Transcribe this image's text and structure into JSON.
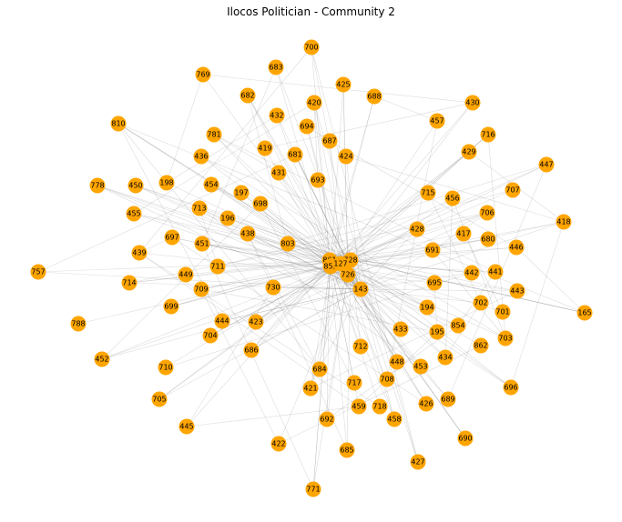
{
  "title": "Ilocos Politician - Community 2",
  "style": {
    "node_color": "#FFA500",
    "edge_color": "#808080",
    "background": "#FFFFFF"
  },
  "hub_ids": [
    "861",
    "855",
    "127",
    "728",
    "726",
    "143"
  ],
  "nodes": [
    {
      "id": "700"
    },
    {
      "id": "683"
    },
    {
      "id": "769"
    },
    {
      "id": "425"
    },
    {
      "id": "688"
    },
    {
      "id": "682"
    },
    {
      "id": "420"
    },
    {
      "id": "430"
    },
    {
      "id": "810"
    },
    {
      "id": "432"
    },
    {
      "id": "694"
    },
    {
      "id": "457"
    },
    {
      "id": "781"
    },
    {
      "id": "687"
    },
    {
      "id": "716"
    },
    {
      "id": "419"
    },
    {
      "id": "681"
    },
    {
      "id": "429"
    },
    {
      "id": "436"
    },
    {
      "id": "424"
    },
    {
      "id": "447"
    },
    {
      "id": "431"
    },
    {
      "id": "778"
    },
    {
      "id": "450"
    },
    {
      "id": "198"
    },
    {
      "id": "454"
    },
    {
      "id": "693"
    },
    {
      "id": "197"
    },
    {
      "id": "715"
    },
    {
      "id": "707"
    },
    {
      "id": "456"
    },
    {
      "id": "698"
    },
    {
      "id": "455"
    },
    {
      "id": "713"
    },
    {
      "id": "196"
    },
    {
      "id": "706"
    },
    {
      "id": "418"
    },
    {
      "id": "428"
    },
    {
      "id": "438"
    },
    {
      "id": "417"
    },
    {
      "id": "697"
    },
    {
      "id": "451"
    },
    {
      "id": "803"
    },
    {
      "id": "680"
    },
    {
      "id": "446"
    },
    {
      "id": "439"
    },
    {
      "id": "691"
    },
    {
      "id": "757"
    },
    {
      "id": "711"
    },
    {
      "id": "861"
    },
    {
      "id": "728"
    },
    {
      "id": "855"
    },
    {
      "id": "127"
    },
    {
      "id": "449"
    },
    {
      "id": "442"
    },
    {
      "id": "441"
    },
    {
      "id": "714"
    },
    {
      "id": "726"
    },
    {
      "id": "695"
    },
    {
      "id": "730"
    },
    {
      "id": "709"
    },
    {
      "id": "143"
    },
    {
      "id": "443"
    },
    {
      "id": "702"
    },
    {
      "id": "699"
    },
    {
      "id": "194"
    },
    {
      "id": "701"
    },
    {
      "id": "165"
    },
    {
      "id": "788"
    },
    {
      "id": "444"
    },
    {
      "id": "423"
    },
    {
      "id": "854"
    },
    {
      "id": "433"
    },
    {
      "id": "195"
    },
    {
      "id": "704"
    },
    {
      "id": "703"
    },
    {
      "id": "712"
    },
    {
      "id": "862"
    },
    {
      "id": "686"
    },
    {
      "id": "452"
    },
    {
      "id": "434"
    },
    {
      "id": "448"
    },
    {
      "id": "453"
    },
    {
      "id": "710"
    },
    {
      "id": "684"
    },
    {
      "id": "708"
    },
    {
      "id": "717"
    },
    {
      "id": "696"
    },
    {
      "id": "421"
    },
    {
      "id": "705"
    },
    {
      "id": "689"
    },
    {
      "id": "426"
    },
    {
      "id": "459"
    },
    {
      "id": "718"
    },
    {
      "id": "692"
    },
    {
      "id": "458"
    },
    {
      "id": "445"
    },
    {
      "id": "690"
    },
    {
      "id": "422"
    },
    {
      "id": "685"
    },
    {
      "id": "427"
    },
    {
      "id": "771"
    }
  ]
}
